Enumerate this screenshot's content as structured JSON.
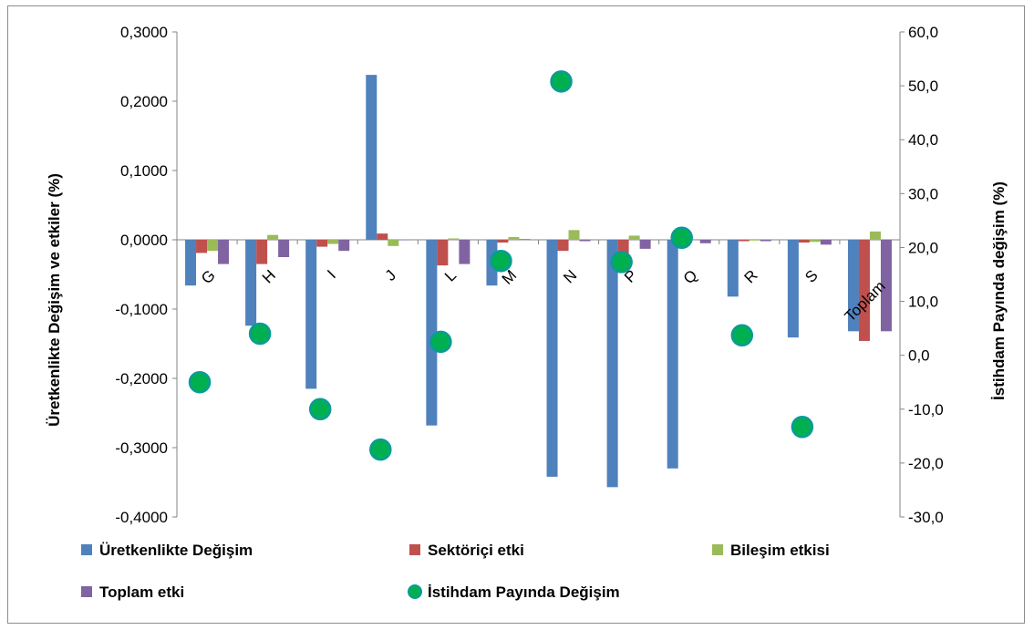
{
  "chart_data": {
    "type": "bar",
    "title": "",
    "categories": [
      "G",
      "H",
      "I",
      "J",
      "L",
      "M",
      "N",
      "P",
      "Q",
      "R",
      "S",
      "Toplam"
    ],
    "y_left": {
      "label": "Üretkenlikte Değişim ve etkiler (%)",
      "ylim": [
        -0.4,
        0.3
      ],
      "ticks": [
        0.3,
        0.2,
        0.1,
        0.0,
        -0.1,
        -0.2,
        -0.3,
        -0.4
      ],
      "tick_labels": [
        "0,3000",
        "0,2000",
        "0,1000",
        "0,0000",
        "-0,1000",
        "-0,2000",
        "-0,3000",
        "-0,4000"
      ]
    },
    "y_right": {
      "label": "İstihdam Payında değişim (%)",
      "ylim": [
        -30,
        60
      ],
      "ticks": [
        60,
        50,
        40,
        30,
        20,
        10,
        0,
        -10,
        -20,
        -30
      ],
      "tick_labels": [
        "60,0",
        "50,0",
        "40,0",
        "30,0",
        "20,0",
        "10,0",
        "0,0",
        "-10,0",
        "-20,0",
        "-30,0"
      ]
    },
    "series": [
      {
        "name": "Üretkenlikte Değişim",
        "type": "bar",
        "axis": "left",
        "color": "#4f81bd",
        "values": [
          -0.066,
          -0.124,
          -0.215,
          0.238,
          -0.268,
          -0.066,
          -0.342,
          -0.357,
          -0.33,
          -0.082,
          -0.141,
          -0.132
        ]
      },
      {
        "name": "Sektöriçi etki",
        "type": "bar",
        "axis": "left",
        "color": "#c0504d",
        "values": [
          -0.019,
          -0.035,
          -0.01,
          0.009,
          -0.037,
          -0.004,
          -0.016,
          -0.02,
          -0.002,
          -0.002,
          -0.004,
          -0.146
        ]
      },
      {
        "name": "Bileşim etkisi",
        "type": "bar",
        "axis": "left",
        "color": "#9bbb59",
        "values": [
          -0.016,
          0.007,
          -0.006,
          -0.009,
          0.002,
          0.004,
          0.014,
          0.006,
          0.001,
          -0.001,
          -0.003,
          0.012
        ]
      },
      {
        "name": "Toplam etki",
        "type": "bar",
        "axis": "left",
        "color": "#8064a2",
        "values": [
          -0.035,
          -0.025,
          -0.016,
          0.0,
          -0.035,
          0.001,
          -0.002,
          -0.013,
          -0.005,
          -0.002,
          -0.007,
          -0.132
        ]
      },
      {
        "name": "İstihdam Payında Değişim",
        "type": "scatter",
        "axis": "right",
        "color": "#00b050",
        "values": [
          -5.0,
          4.0,
          -10.0,
          -17.5,
          2.5,
          17.5,
          50.8,
          17.3,
          21.8,
          3.7,
          -13.3,
          null
        ]
      }
    ],
    "legend_position": "bottom",
    "grid": false
  }
}
